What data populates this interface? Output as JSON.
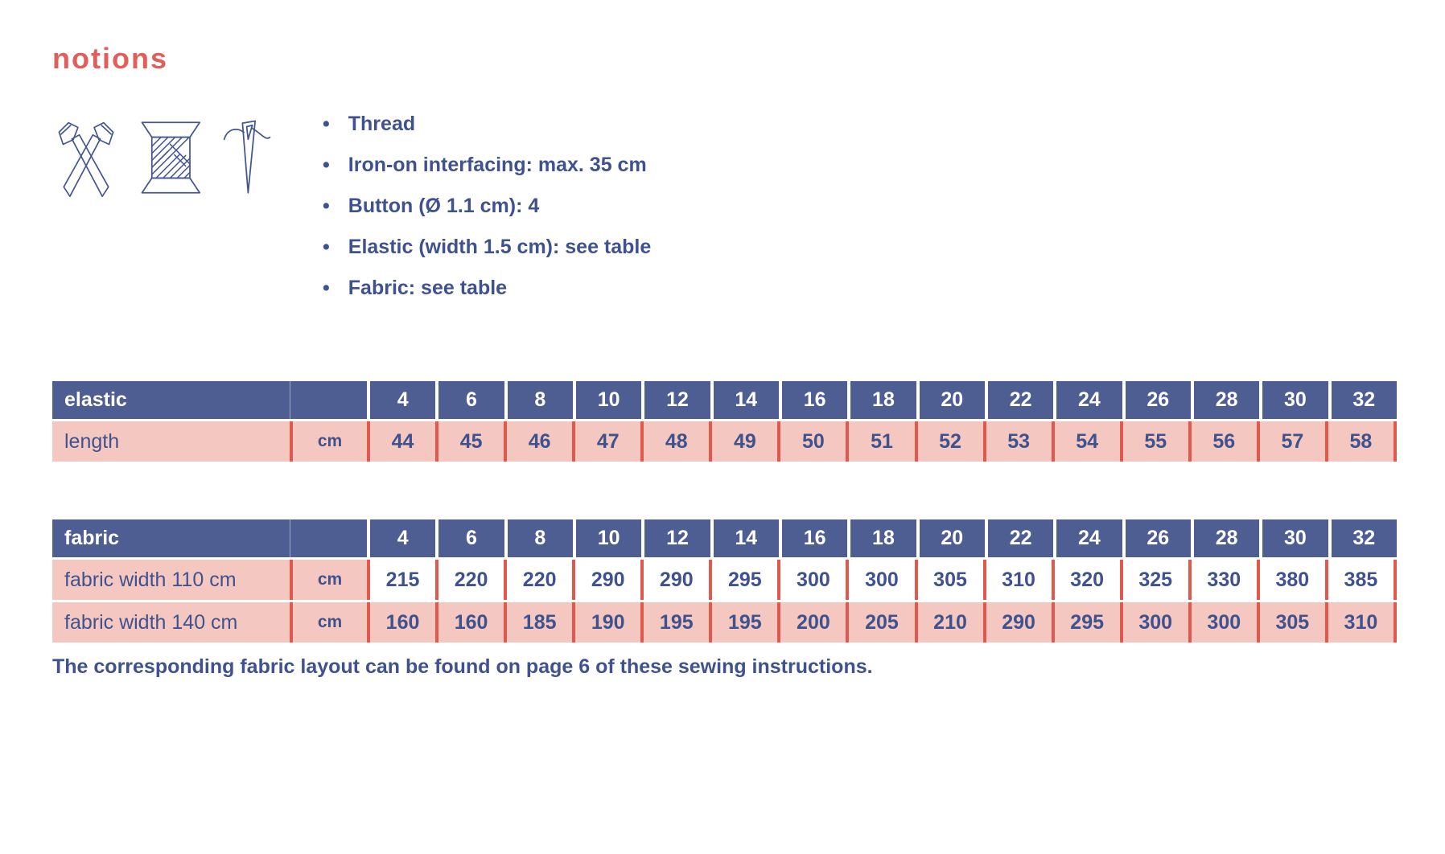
{
  "page": {
    "title": "notions",
    "footer": "The corresponding fabric layout can be found on page 6 of these sewing instructions."
  },
  "icons": [
    {
      "name": "scissors-icon"
    },
    {
      "name": "thread-spool-icon"
    },
    {
      "name": "needle-icon"
    }
  ],
  "notions_list": {
    "items": [
      "Thread",
      "Iron-on interfacing: max. 35 cm",
      "Button (Ø 1.1 cm): 4",
      "Elastic (width 1.5 cm): see table",
      "Fabric: see table"
    ]
  },
  "sizes": [
    "4",
    "6",
    "8",
    "10",
    "12",
    "14",
    "16",
    "18",
    "20",
    "22",
    "24",
    "26",
    "28",
    "30",
    "32"
  ],
  "elastic_table": {
    "title": "elastic",
    "rows": [
      {
        "label": "length",
        "unit": "cm",
        "zebra": "pink",
        "values": [
          "44",
          "45",
          "46",
          "47",
          "48",
          "49",
          "50",
          "51",
          "52",
          "53",
          "54",
          "55",
          "56",
          "57",
          "58"
        ]
      }
    ]
  },
  "fabric_table": {
    "title": "fabric",
    "rows": [
      {
        "label": "fabric width 110 cm",
        "unit": "cm",
        "zebra": "white",
        "values": [
          "215",
          "220",
          "220",
          "290",
          "290",
          "295",
          "300",
          "300",
          "305",
          "310",
          "320",
          "325",
          "330",
          "380",
          "385"
        ]
      },
      {
        "label": "fabric width 140 cm",
        "unit": "cm",
        "zebra": "pink",
        "values": [
          "160",
          "160",
          "185",
          "190",
          "195",
          "195",
          "200",
          "205",
          "210",
          "290",
          "295",
          "300",
          "300",
          "305",
          "310"
        ]
      }
    ]
  },
  "colors": {
    "header_navy": "#4e5e92",
    "text_navy": "#3f528e",
    "row_pink": "#f4c8c1",
    "divider_red": "#e1584d",
    "title_coral": "#e05f5b"
  }
}
